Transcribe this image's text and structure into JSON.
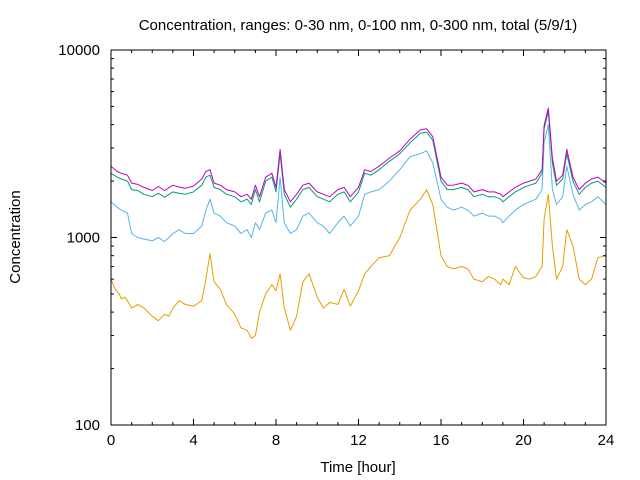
{
  "chart_data": {
    "type": "line",
    "title": "Concentration, ranges: 0-30 nm, 0-100 nm, 0-300 nm, total (5/9/1)",
    "xlabel": "Time [hour]",
    "ylabel": "Concentration",
    "xlim": [
      0,
      24
    ],
    "ylim": [
      100,
      10000
    ],
    "yscale": "log",
    "grid": false,
    "legend": "none",
    "x_ticks": [
      0,
      4,
      8,
      12,
      16,
      20,
      24
    ],
    "x_tick_labels": [
      "0",
      "4",
      "8",
      "12",
      "16",
      "20",
      "24"
    ],
    "y_ticks": [
      100,
      1000,
      10000
    ],
    "y_tick_labels": [
      "100",
      "1000",
      "10000"
    ],
    "series": [
      {
        "color": "#e69f00",
        "x": [
          0,
          0.2,
          0.4,
          0.5,
          0.7,
          1.0,
          1.3,
          1.6,
          2.0,
          2.3,
          2.6,
          2.8,
          3.0,
          3.3,
          3.6,
          4.0,
          4.4,
          4.6,
          4.8,
          5.0,
          5.3,
          5.6,
          6.0,
          6.3,
          6.6,
          6.8,
          7.0,
          7.2,
          7.5,
          7.8,
          8.0,
          8.2,
          8.4,
          8.7,
          9.0,
          9.3,
          9.6,
          10.0,
          10.3,
          10.6,
          11.0,
          11.3,
          11.6,
          12.0,
          12.3,
          12.6,
          13.0,
          13.5,
          14.0,
          14.5,
          15.0,
          15.3,
          15.6,
          16.0,
          16.3,
          16.6,
          17.0,
          17.3,
          17.6,
          18.0,
          18.3,
          18.6,
          18.9,
          19.0,
          19.3,
          19.6,
          20.0,
          20.3,
          20.6,
          20.9,
          21.0,
          21.2,
          21.4,
          21.6,
          21.9,
          22.1,
          22.4,
          22.7,
          23.0,
          23.3,
          23.6,
          24.0
        ],
        "values": [
          600,
          530,
          500,
          470,
          480,
          420,
          440,
          420,
          380,
          360,
          390,
          380,
          420,
          460,
          440,
          430,
          460,
          600,
          820,
          580,
          530,
          440,
          390,
          330,
          320,
          290,
          300,
          400,
          500,
          560,
          520,
          640,
          420,
          320,
          380,
          580,
          640,
          480,
          420,
          450,
          440,
          530,
          430,
          520,
          640,
          700,
          780,
          800,
          1000,
          1400,
          1600,
          1800,
          1500,
          800,
          700,
          680,
          700,
          680,
          600,
          580,
          620,
          600,
          560,
          600,
          560,
          700,
          610,
          600,
          620,
          700,
          1250,
          1700,
          900,
          600,
          700,
          1100,
          900,
          600,
          560,
          600,
          780,
          800
        ]
      },
      {
        "color": "#56b4e9",
        "x": [
          0,
          0.3,
          0.5,
          0.8,
          1.0,
          1.3,
          1.6,
          2.0,
          2.3,
          2.6,
          3.0,
          3.3,
          3.6,
          4.0,
          4.4,
          4.6,
          4.8,
          5.0,
          5.3,
          5.6,
          6.0,
          6.3,
          6.6,
          6.8,
          7.0,
          7.2,
          7.5,
          7.8,
          8.0,
          8.2,
          8.4,
          8.7,
          9.0,
          9.3,
          9.6,
          10.0,
          10.3,
          10.6,
          11.0,
          11.3,
          11.6,
          12.0,
          12.3,
          12.6,
          13.0,
          13.5,
          14.0,
          14.5,
          15.0,
          15.3,
          15.6,
          16.0,
          16.3,
          16.6,
          17.0,
          17.3,
          17.6,
          18.0,
          18.3,
          18.6,
          18.9,
          19.0,
          19.3,
          19.6,
          20.0,
          20.3,
          20.6,
          20.9,
          21.0,
          21.2,
          21.4,
          21.6,
          21.9,
          22.1,
          22.4,
          22.7,
          23.0,
          23.3,
          23.6,
          24.0
        ],
        "values": [
          1550,
          1450,
          1400,
          1350,
          1050,
          1000,
          980,
          960,
          1000,
          950,
          1050,
          1100,
          1050,
          1050,
          1150,
          1400,
          1600,
          1350,
          1300,
          1200,
          1150,
          1050,
          1100,
          1000,
          1200,
          1100,
          1350,
          1400,
          1200,
          2100,
          1200,
          1050,
          1100,
          1300,
          1350,
          1200,
          1150,
          1050,
          1200,
          1300,
          1150,
          1300,
          1700,
          1750,
          1800,
          2000,
          2300,
          2700,
          2800,
          2900,
          2500,
          1600,
          1450,
          1400,
          1450,
          1400,
          1300,
          1350,
          1300,
          1300,
          1250,
          1200,
          1300,
          1400,
          1500,
          1550,
          1600,
          1800,
          3200,
          4000,
          1800,
          1500,
          1650,
          2400,
          1700,
          1400,
          1500,
          1550,
          1650,
          1500
        ]
      },
      {
        "color": "#009e73",
        "x": [
          0,
          0.3,
          0.5,
          0.8,
          1.0,
          1.3,
          1.6,
          2.0,
          2.3,
          2.6,
          3.0,
          3.3,
          3.6,
          4.0,
          4.4,
          4.6,
          4.8,
          5.0,
          5.3,
          5.6,
          6.0,
          6.3,
          6.6,
          6.8,
          7.0,
          7.2,
          7.5,
          7.8,
          8.0,
          8.2,
          8.4,
          8.7,
          9.0,
          9.3,
          9.6,
          10.0,
          10.3,
          10.6,
          11.0,
          11.3,
          11.6,
          12.0,
          12.3,
          12.6,
          13.0,
          13.5,
          14.0,
          14.5,
          15.0,
          15.3,
          15.6,
          16.0,
          16.3,
          16.6,
          17.0,
          17.3,
          17.6,
          18.0,
          18.3,
          18.6,
          18.9,
          19.0,
          19.3,
          19.6,
          20.0,
          20.3,
          20.6,
          20.9,
          21.0,
          21.2,
          21.4,
          21.6,
          21.9,
          22.1,
          22.4,
          22.7,
          23.0,
          23.3,
          23.6,
          24.0
        ],
        "values": [
          2200,
          2100,
          2050,
          2000,
          1800,
          1780,
          1700,
          1650,
          1720,
          1640,
          1750,
          1720,
          1700,
          1750,
          1900,
          2100,
          2150,
          1850,
          1800,
          1700,
          1650,
          1550,
          1600,
          1500,
          1800,
          1550,
          2000,
          2100,
          1750,
          2800,
          1700,
          1450,
          1600,
          1800,
          1850,
          1650,
          1600,
          1550,
          1700,
          1750,
          1550,
          1750,
          2200,
          2150,
          2300,
          2550,
          2800,
          3200,
          3600,
          3650,
          3300,
          2000,
          1800,
          1800,
          1850,
          1800,
          1650,
          1700,
          1650,
          1650,
          1600,
          1550,
          1650,
          1750,
          1850,
          1900,
          1950,
          2200,
          3800,
          4700,
          2500,
          1900,
          2050,
          2800,
          2000,
          1700,
          1850,
          1950,
          2000,
          1850
        ]
      },
      {
        "color": "#c000c0",
        "x": [
          0,
          0.3,
          0.5,
          0.8,
          1.0,
          1.3,
          1.6,
          2.0,
          2.3,
          2.6,
          3.0,
          3.3,
          3.6,
          4.0,
          4.4,
          4.6,
          4.8,
          5.0,
          5.3,
          5.6,
          6.0,
          6.3,
          6.6,
          6.8,
          7.0,
          7.2,
          7.5,
          7.8,
          8.0,
          8.2,
          8.4,
          8.7,
          9.0,
          9.3,
          9.6,
          10.0,
          10.3,
          10.6,
          11.0,
          11.3,
          11.6,
          12.0,
          12.3,
          12.6,
          13.0,
          13.5,
          14.0,
          14.5,
          15.0,
          15.3,
          15.6,
          16.0,
          16.3,
          16.6,
          17.0,
          17.3,
          17.6,
          18.0,
          18.3,
          18.6,
          18.9,
          19.0,
          19.3,
          19.6,
          20.0,
          20.3,
          20.6,
          20.9,
          21.0,
          21.2,
          21.4,
          21.6,
          21.9,
          22.1,
          22.4,
          22.7,
          23.0,
          23.3,
          23.6,
          24.0
        ],
        "values": [
          2400,
          2250,
          2200,
          2150,
          1950,
          1920,
          1850,
          1780,
          1870,
          1780,
          1900,
          1860,
          1830,
          1880,
          2050,
          2250,
          2300,
          1950,
          1900,
          1800,
          1750,
          1650,
          1700,
          1600,
          1900,
          1650,
          2100,
          2200,
          1850,
          2950,
          1800,
          1550,
          1700,
          1900,
          1950,
          1750,
          1700,
          1650,
          1800,
          1850,
          1650,
          1850,
          2300,
          2250,
          2400,
          2650,
          2900,
          3350,
          3750,
          3800,
          3450,
          2100,
          1900,
          1900,
          1950,
          1900,
          1750,
          1800,
          1750,
          1750,
          1700,
          1650,
          1750,
          1850,
          1950,
          2000,
          2050,
          2300,
          3950,
          4900,
          2650,
          2000,
          2150,
          2950,
          2100,
          1800,
          1950,
          2050,
          2100,
          1950
        ]
      }
    ]
  }
}
